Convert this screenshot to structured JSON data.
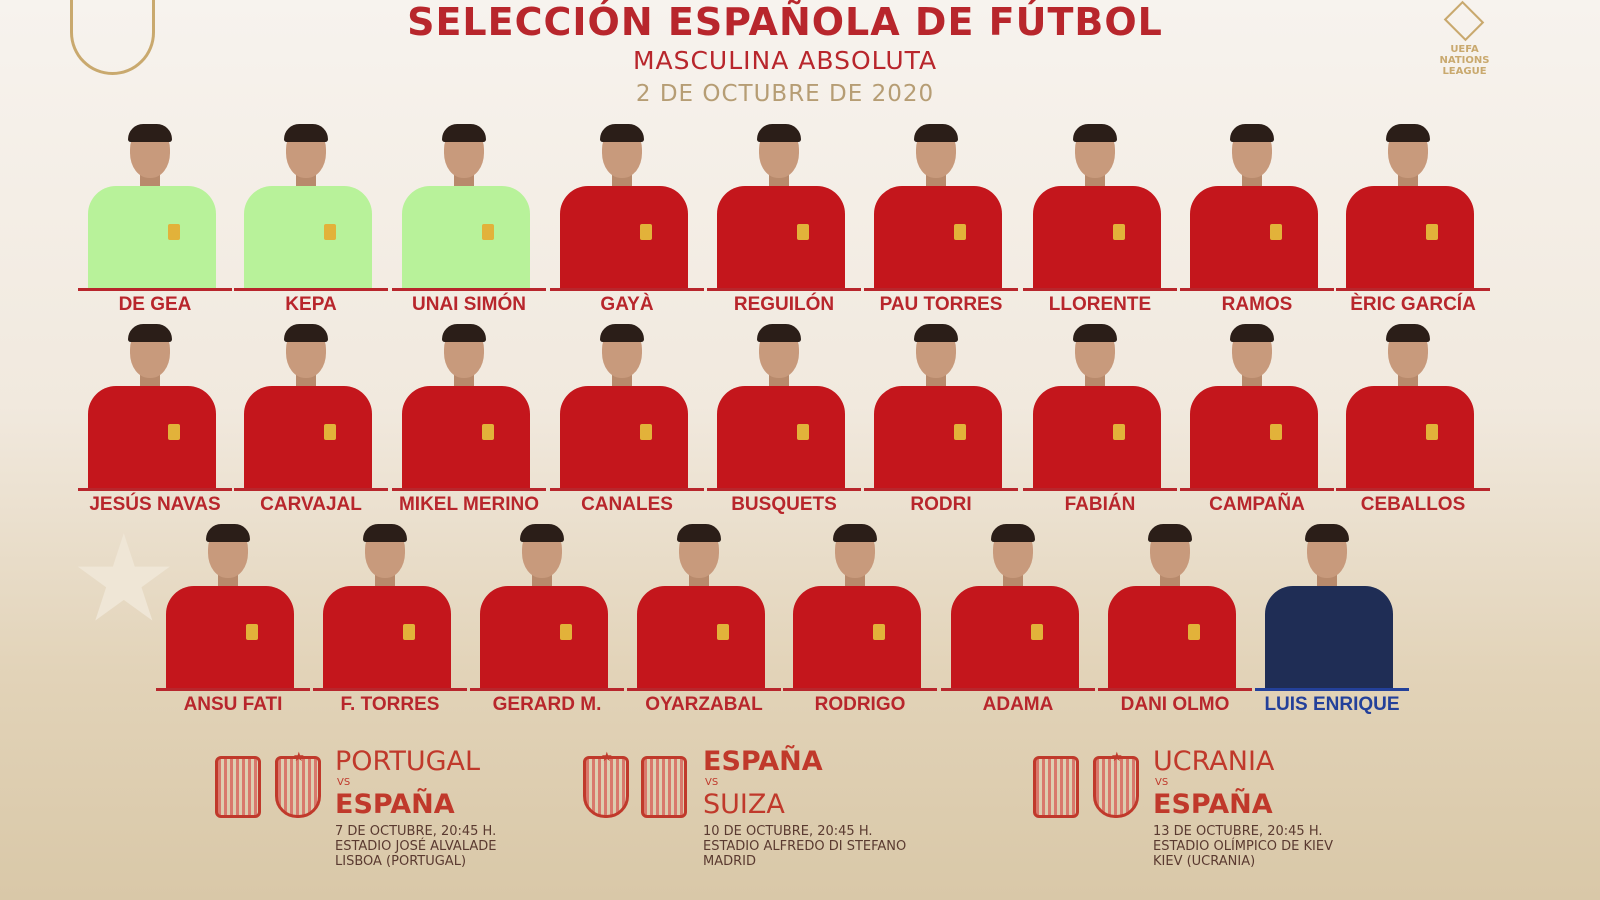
{
  "header": {
    "title": "SELECCIÓN ESPAÑOLA DE FÚTBOL",
    "subtitle": "MASCULINA ABSOLUTA",
    "date": "2 DE OCTUBRE DE 2020"
  },
  "logos": {
    "federation": "RFEF",
    "competition": "UEFA NATIONS LEAGUE"
  },
  "colors": {
    "red": "#b8262c",
    "coach": "#23409a",
    "gold": "#b69d74"
  },
  "rows": [
    [
      {
        "name": "DE GEA",
        "kit": "gk"
      },
      {
        "name": "KEPA",
        "kit": "gk"
      },
      {
        "name": "UNAI SIMÓN",
        "kit": "gk"
      },
      {
        "name": "GAYÀ",
        "kit": "field"
      },
      {
        "name": "REGUILÓN",
        "kit": "field"
      },
      {
        "name": "PAU TORRES",
        "kit": "field"
      },
      {
        "name": "LLORENTE",
        "kit": "field"
      },
      {
        "name": "RAMOS",
        "kit": "field"
      },
      {
        "name": "ÈRIC GARCÍA",
        "kit": "field"
      }
    ],
    [
      {
        "name": "JESÚS NAVAS",
        "kit": "field"
      },
      {
        "name": "CARVAJAL",
        "kit": "field"
      },
      {
        "name": "MIKEL MERINO",
        "kit": "field"
      },
      {
        "name": "CANALES",
        "kit": "field"
      },
      {
        "name": "BUSQUETS",
        "kit": "field"
      },
      {
        "name": "RODRI",
        "kit": "field"
      },
      {
        "name": "FABIÁN",
        "kit": "field"
      },
      {
        "name": "CAMPAÑA",
        "kit": "field"
      },
      {
        "name": "CEBALLOS",
        "kit": "field"
      }
    ],
    [
      {
        "name": "ANSU FATI",
        "kit": "field"
      },
      {
        "name": "F. TORRES",
        "kit": "field"
      },
      {
        "name": "GERARD M.",
        "kit": "field"
      },
      {
        "name": "OYARZABAL",
        "kit": "field"
      },
      {
        "name": "RODRIGO",
        "kit": "field"
      },
      {
        "name": "ADAMA",
        "kit": "field"
      },
      {
        "name": "DANI OLMO",
        "kit": "field"
      },
      {
        "name": "LUIS ENRIQUE",
        "kit": "coach"
      }
    ]
  ],
  "fixtures": [
    {
      "home": "PORTUGAL",
      "vs": "VS",
      "away": "ESPAÑA",
      "bold": "away",
      "date": "7 DE OCTUBRE, 20:45 H.",
      "stadium": "ESTADIO JOSÉ ALVALADE",
      "city": "LISBOA (PORTUGAL)",
      "opponent_badge": "portugal-crest"
    },
    {
      "home": "ESPAÑA",
      "vs": "VS",
      "away": "SUIZA",
      "bold": "home",
      "date": "10 DE OCTUBRE, 20:45 H.",
      "stadium": "ESTADIO ALFREDO DI STEFANO",
      "city": "MADRID",
      "opponent_badge": "switzerland-crest"
    },
    {
      "home": "UCRANIA",
      "vs": "VS",
      "away": "ESPAÑA",
      "bold": "away",
      "date": "13 DE OCTUBRE, 20:45 H.",
      "stadium": "ESTADIO OLÍMPICO DE KIEV",
      "city": "KIEV (UCRANIA)",
      "opponent_badge": "ukraine-crest"
    }
  ]
}
